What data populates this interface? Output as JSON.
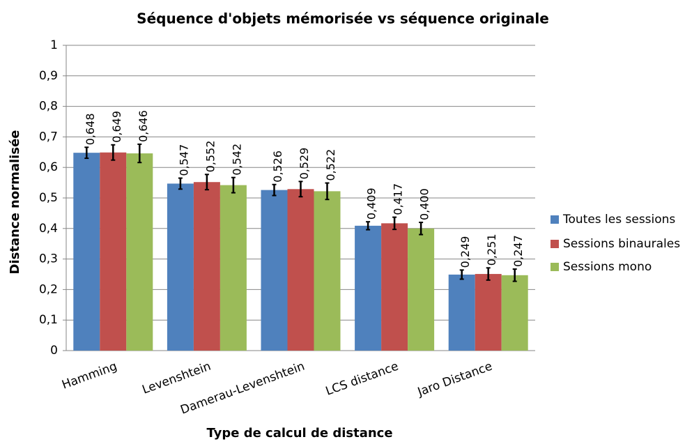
{
  "chart_data": {
    "type": "bar",
    "title": "Séquence d'objets mémorisée vs séquence originale",
    "x_label": "Type de calcul de distance",
    "y_label": "Distance normalisée",
    "categories": [
      "Hamming",
      "Levenshtein",
      "Damerau-Levenshtein",
      "LCS distance",
      "Jaro Distance"
    ],
    "series": [
      {
        "name": "Toutes les sessions",
        "color": "#4f81bd",
        "values": [
          0.648,
          0.547,
          0.526,
          0.409,
          0.249
        ],
        "value_labels": [
          "0,648",
          "0,547",
          "0,526",
          "0,409",
          "0,249"
        ],
        "errors": [
          0.018,
          0.018,
          0.018,
          0.013,
          0.015
        ]
      },
      {
        "name": "Sessions binaurales",
        "color": "#c0504d",
        "values": [
          0.649,
          0.552,
          0.529,
          0.417,
          0.251
        ],
        "value_labels": [
          "0,649",
          "0,552",
          "0,529",
          "0,417",
          "0,251"
        ],
        "errors": [
          0.025,
          0.025,
          0.025,
          0.02,
          0.02
        ]
      },
      {
        "name": "Sessions mono",
        "color": "#9bbb59",
        "values": [
          0.646,
          0.542,
          0.522,
          0.4,
          0.247
        ],
        "value_labels": [
          "0,646",
          "0,542",
          "0,522",
          "0,400",
          "0,247"
        ],
        "errors": [
          0.03,
          0.025,
          0.027,
          0.02,
          0.02
        ]
      }
    ],
    "ylim": [
      0,
      1
    ],
    "yticks": [
      0,
      {
        "value": 0.1,
        "label": "0,1"
      },
      {
        "value": 0.2,
        "label": "0,2"
      },
      {
        "value": 0.3,
        "label": "0,3"
      },
      {
        "value": 0.4,
        "label": "0,4"
      },
      {
        "value": 0.5,
        "label": "0,5"
      },
      {
        "value": 0.6,
        "label": "0,6"
      },
      {
        "value": 0.7,
        "label": "0,7"
      },
      {
        "value": 0.8,
        "label": "0,8"
      },
      {
        "value": 0.9,
        "label": "0,9"
      },
      1
    ],
    "grid": true,
    "legend": "right"
  }
}
